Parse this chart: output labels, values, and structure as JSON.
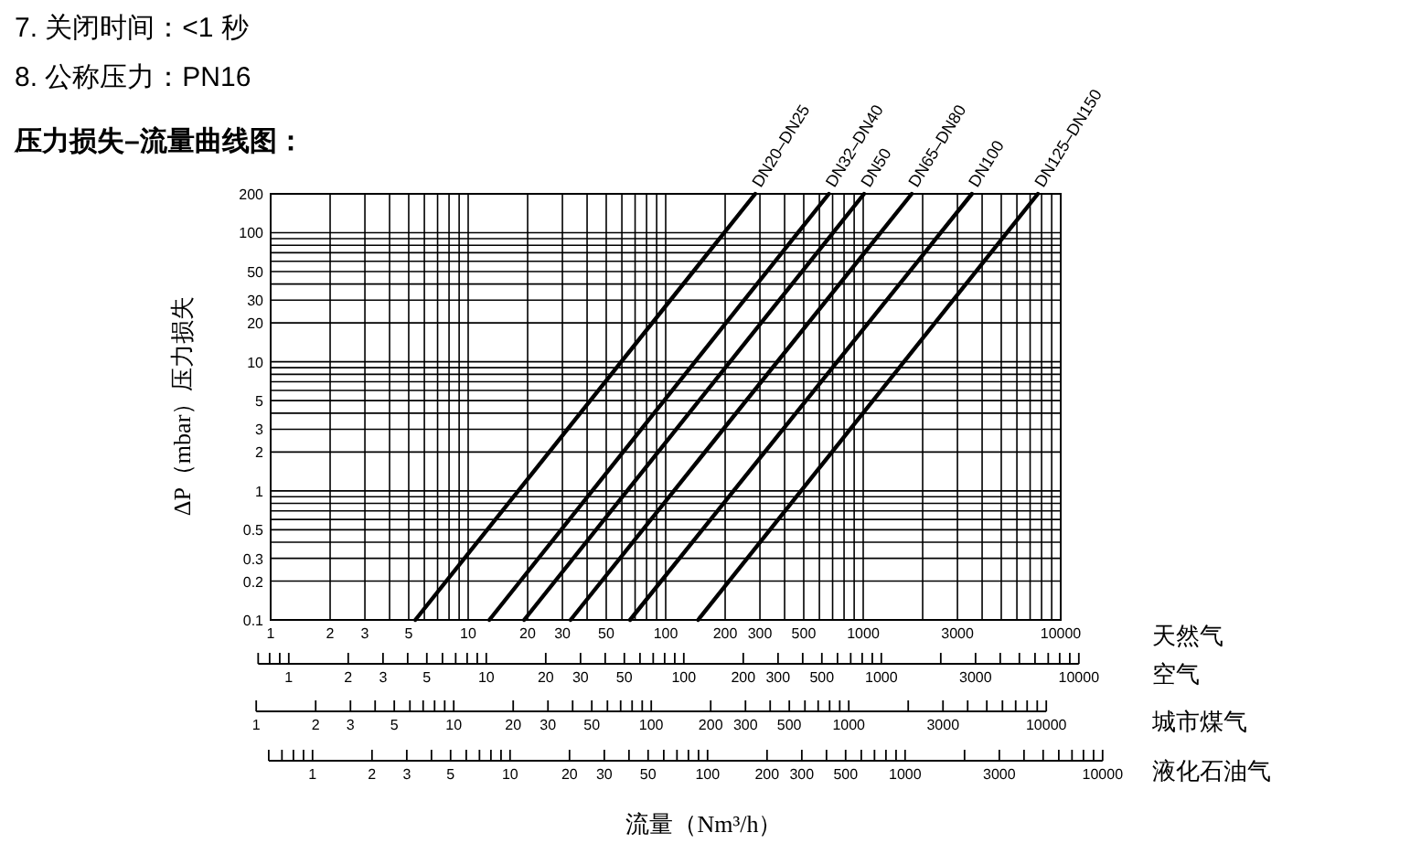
{
  "chart_data": [
    {
      "type": "line",
      "title": "压力损失–流量曲线图：",
      "annotations": [
        "7. 关闭时间：<1 秒",
        "8. 公称压力：PN16",
        "流量（Nm³/h）"
      ],
      "xlabel": "天然气",
      "ylabel": "ΔP（mbar）压力损失",
      "log": "xy",
      "grid": true,
      "xlim": [
        1,
        10000
      ],
      "ylim": [
        0.1,
        200
      ],
      "xticks": [
        1,
        2,
        3,
        {
          "value": 4,
          "label": null
        },
        5,
        {
          "value": 6,
          "label": null
        },
        {
          "value": 7,
          "label": null
        },
        {
          "value": 8,
          "label": null
        },
        {
          "value": 9,
          "label": null
        },
        10,
        20,
        30,
        {
          "value": 40,
          "label": null
        },
        50,
        {
          "value": 60,
          "label": null
        },
        {
          "value": 70,
          "label": null
        },
        {
          "value": 80,
          "label": null
        },
        {
          "value": 90,
          "label": null
        },
        100,
        200,
        300,
        {
          "value": 400,
          "label": null
        },
        500,
        {
          "value": 600,
          "label": null
        },
        {
          "value": 700,
          "label": null
        },
        {
          "value": 800,
          "label": null
        },
        {
          "value": 900,
          "label": null
        },
        1000,
        {
          "value": 2000,
          "label": null
        },
        3000,
        {
          "value": 4000,
          "label": null
        },
        {
          "value": 5000,
          "label": null
        },
        {
          "value": 6000,
          "label": null
        },
        {
          "value": 7000,
          "label": null
        },
        {
          "value": 8000,
          "label": null
        },
        {
          "value": 9000,
          "label": null
        },
        10000
      ],
      "yticks": [
        0.1,
        0.2,
        0.3,
        {
          "value": 0.4,
          "label": null
        },
        0.5,
        {
          "value": 0.6,
          "label": null
        },
        {
          "value": 0.7,
          "label": null
        },
        {
          "value": 0.8,
          "label": null
        },
        {
          "value": 0.9,
          "label": null
        },
        1,
        2,
        3,
        {
          "value": 4,
          "label": null
        },
        5,
        {
          "value": 6,
          "label": null
        },
        {
          "value": 7,
          "label": null
        },
        {
          "value": 8,
          "label": null
        },
        {
          "value": 9,
          "label": null
        },
        10,
        20,
        30,
        {
          "value": 40,
          "label": null
        },
        50,
        {
          "value": 60,
          "label": null
        },
        {
          "value": 70,
          "label": null
        },
        {
          "value": 80,
          "label": null
        },
        {
          "value": 90,
          "label": null
        },
        100,
        200
      ],
      "series": [
        {
          "name": "DN20–DN25",
          "color": "#000000",
          "x": [
            5.4,
            284
          ],
          "values": [
            0.1,
            200
          ]
        },
        {
          "name": "DN32–DN40",
          "color": "#000000",
          "x": [
            12.8,
            670
          ],
          "values": [
            0.1,
            200
          ]
        },
        {
          "name": "DN50",
          "color": "#000000",
          "x": [
            19.2,
            1010
          ],
          "values": [
            0.1,
            200
          ]
        },
        {
          "name": "DN65–DN80",
          "color": "#000000",
          "x": [
            33,
            1760
          ],
          "values": [
            0.1,
            200
          ]
        },
        {
          "name": "DN100",
          "color": "#000000",
          "x": [
            66,
            3550
          ],
          "values": [
            0.1,
            200
          ]
        },
        {
          "name": "DN125–DN150",
          "color": "#000000",
          "x": [
            146,
            7660
          ],
          "values": [
            0.1,
            200
          ]
        }
      ]
    },
    {
      "type": "other",
      "title": "空气",
      "annotations": [
        "1",
        "2",
        "3",
        "5",
        "10",
        "20",
        "30",
        "50",
        "100",
        "200",
        "300",
        "500",
        "1000",
        "3000",
        "10000"
      ]
    },
    {
      "type": "other",
      "title": "城市煤气",
      "annotations": [
        "1",
        "2",
        "3",
        "5",
        "10",
        "20",
        "30",
        "50",
        "100",
        "200",
        "300",
        "500",
        "1000",
        "3000",
        "10000"
      ]
    },
    {
      "type": "other",
      "title": "液化石油气",
      "annotations": [
        "1",
        "2",
        "3",
        "5",
        "10",
        "20",
        "30",
        "50",
        "100",
        "200",
        "300",
        "500",
        "1000",
        "3000",
        "10000"
      ]
    }
  ]
}
